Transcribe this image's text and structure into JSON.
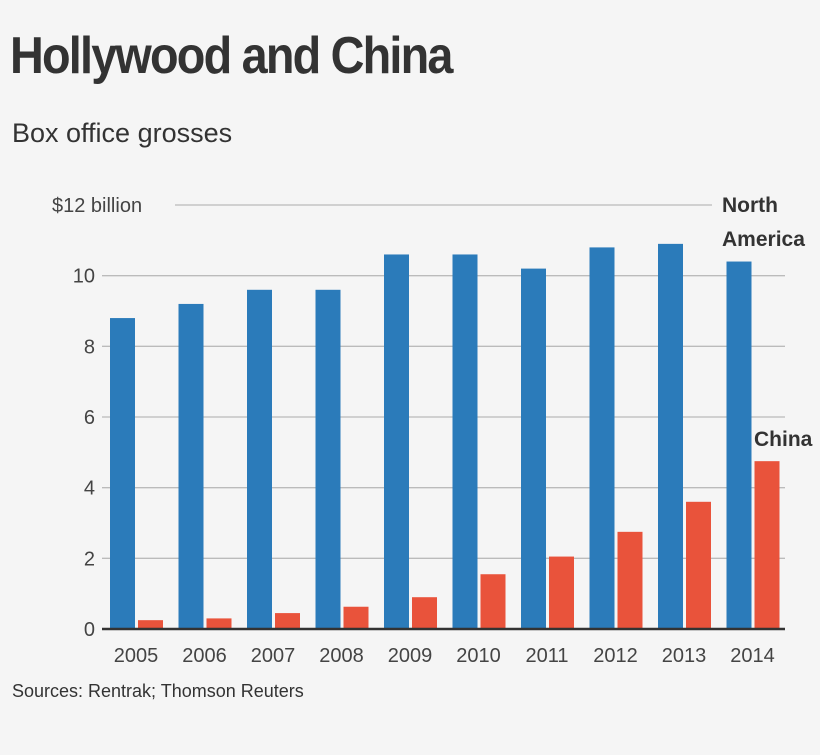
{
  "title": "Hollywood and China",
  "subtitle": "Box office grosses",
  "source": "Sources: Rentrak; Thomson Reuters",
  "colors": {
    "north_america": "#2b7bba",
    "china": "#e9533b",
    "grid": "#bbbbbb",
    "axis": "#333333"
  },
  "chart_data": {
    "type": "bar",
    "categories": [
      "2005",
      "2006",
      "2007",
      "2008",
      "2009",
      "2010",
      "2011",
      "2012",
      "2013",
      "2014"
    ],
    "series": [
      {
        "name": "North America",
        "label_lines": [
          "North",
          "America"
        ],
        "values": [
          8.8,
          9.2,
          9.6,
          9.6,
          10.6,
          10.6,
          10.2,
          10.8,
          10.9,
          10.4
        ]
      },
      {
        "name": "China",
        "label_lines": [
          "China"
        ],
        "values": [
          0.25,
          0.3,
          0.45,
          0.63,
          0.9,
          1.55,
          2.05,
          2.75,
          3.6,
          4.75
        ]
      }
    ],
    "ylim": [
      0,
      12
    ],
    "y_ticks": [
      {
        "value": 0,
        "label": "0"
      },
      {
        "value": 2,
        "label": "2"
      },
      {
        "value": 4,
        "label": "4"
      },
      {
        "value": 6,
        "label": "6"
      },
      {
        "value": 8,
        "label": "8"
      },
      {
        "value": 10,
        "label": "10"
      },
      {
        "value": 12,
        "label": "$12 billion"
      }
    ],
    "units": "billion dollars",
    "grid": true,
    "legend": "direct labels at right"
  }
}
